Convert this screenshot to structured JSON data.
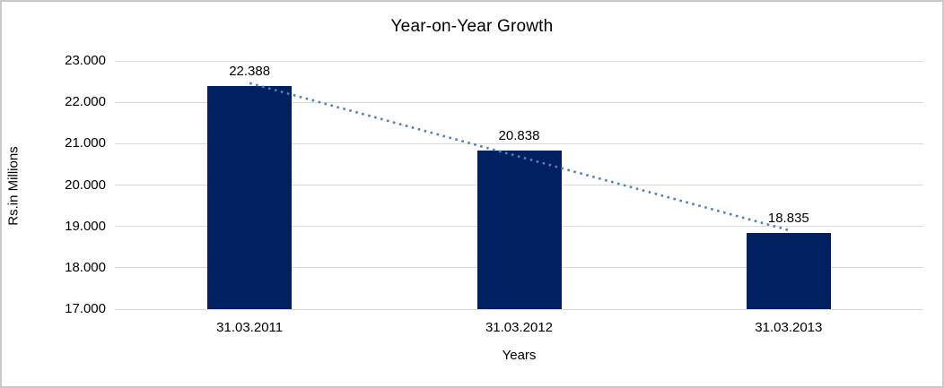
{
  "chart_data": {
    "type": "bar",
    "title": "Year-on-Year Growth",
    "xlabel": "Years",
    "ylabel": "Rs.in Millions",
    "categories": [
      "31.03.2011",
      "31.03.2012",
      "31.03.2013"
    ],
    "values": [
      22388,
      20838,
      18835
    ],
    "data_labels": [
      "22.388",
      "20.838",
      "18.835"
    ],
    "ylim": [
      17000,
      23000
    ],
    "ytick_step": 1000,
    "ytick_labels": [
      "17.000",
      "18.000",
      "19.000",
      "20.000",
      "21.000",
      "22.000",
      "23.000"
    ],
    "grid": true,
    "legend": false,
    "bar_color": "#002060",
    "gridline_color": "#d9d9d9",
    "trendline": {
      "type": "linear",
      "style": "dotted",
      "color": "#4e81bd"
    }
  }
}
